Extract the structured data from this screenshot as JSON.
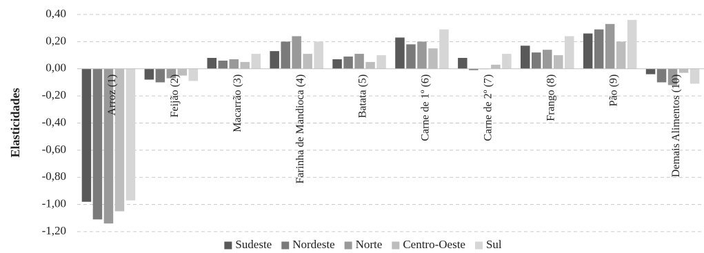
{
  "chart_data": {
    "type": "bar",
    "title": "",
    "xlabel": "",
    "ylabel": "Elasticidades",
    "ylim": [
      -1.2,
      0.4
    ],
    "yticks": [
      0.4,
      0.2,
      0.0,
      -0.2,
      -0.4,
      -0.6,
      -0.8,
      -1.0,
      -1.2
    ],
    "ytick_labels": [
      "0,40",
      "0,20",
      "0,00",
      "-0,20",
      "-0,40",
      "-0,60",
      "-0,80",
      "-1,00",
      "-1,20"
    ],
    "grid": true,
    "legend_position": "bottom",
    "categories": [
      "Arroz (1)",
      "Feijão (2)",
      "Macarrão (3)",
      "Farinha de Mandioca (4)",
      "Batata (5)",
      "Carne de 1º (6)",
      "Carne de 2º (7)",
      "Frango (8)",
      "Pão (9)",
      "Demais Alimentos (10)"
    ],
    "series": [
      {
        "name": "Sudeste",
        "color": "#595959",
        "values": [
          -0.98,
          -0.08,
          0.08,
          0.13,
          0.07,
          0.23,
          0.08,
          0.17,
          0.26,
          -0.04
        ]
      },
      {
        "name": "Nordeste",
        "color": "#7a7a7a",
        "values": [
          -1.11,
          -0.1,
          0.06,
          0.2,
          0.09,
          0.18,
          -0.01,
          0.12,
          0.29,
          -0.1
        ]
      },
      {
        "name": "Norte",
        "color": "#999999",
        "values": [
          -1.14,
          -0.07,
          0.07,
          0.24,
          0.11,
          0.2,
          0.0,
          0.14,
          0.33,
          -0.12
        ]
      },
      {
        "name": "Centro-Oeste",
        "color": "#bdbdbd",
        "values": [
          -1.05,
          -0.05,
          0.05,
          0.11,
          0.05,
          0.15,
          0.03,
          0.1,
          0.2,
          -0.03
        ]
      },
      {
        "name": "Sul",
        "color": "#d6d6d6",
        "values": [
          -0.97,
          -0.09,
          0.11,
          0.2,
          0.1,
          0.29,
          0.11,
          0.24,
          0.36,
          -0.11
        ]
      }
    ]
  }
}
